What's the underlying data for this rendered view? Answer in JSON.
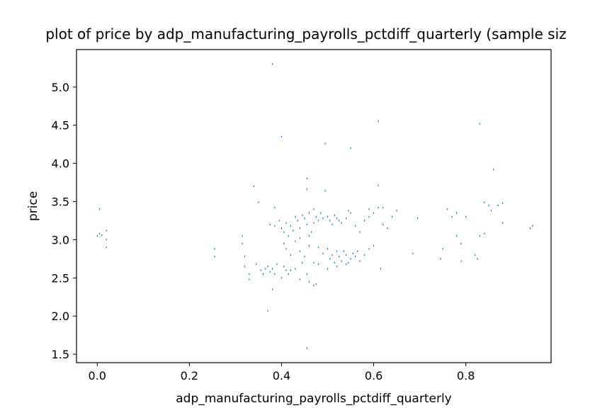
{
  "chart_data": {
    "type": "scatter",
    "title": "plot of price by adp_manufacturing_payrolls_pctdiff_quarterly (sample siz",
    "xlabel": "adp_manufacturing_payrolls_pctdiff_quarterly",
    "ylabel": "price",
    "xlim": [
      -0.045,
      0.985
    ],
    "ylim": [
      1.39,
      5.49
    ],
    "x_ticks": [
      0.0,
      0.2,
      0.4,
      0.6,
      0.8
    ],
    "x_tick_labels": [
      "0.0",
      "0.2",
      "0.4",
      "0.6",
      "0.8"
    ],
    "y_ticks": [
      1.5,
      2.0,
      2.5,
      3.0,
      3.5,
      4.0,
      4.5,
      5.0
    ],
    "y_tick_labels": [
      "1.5",
      "2.0",
      "2.5",
      "3.0",
      "3.5",
      "4.0",
      "4.5",
      "5.0"
    ],
    "grid": false,
    "marker_color": "#1f77b4",
    "points": [
      [
        0.38,
        5.3
      ],
      [
        0.61,
        4.55
      ],
      [
        0.83,
        4.52
      ],
      [
        0.4,
        4.35
      ],
      [
        0.495,
        4.26
      ],
      [
        0.55,
        4.2
      ],
      [
        0.86,
        3.92
      ],
      [
        0.455,
        3.8
      ],
      [
        0.61,
        3.71
      ],
      [
        0.34,
        3.7
      ],
      [
        0.455,
        3.66
      ],
      [
        0.495,
        3.64
      ],
      [
        0.35,
        3.49
      ],
      [
        0.84,
        3.49
      ],
      [
        0.87,
        3.45
      ],
      [
        0.005,
        3.4
      ],
      [
        0.385,
        3.42
      ],
      [
        0.47,
        3.4
      ],
      [
        0.545,
        3.38
      ],
      [
        0.59,
        3.4
      ],
      [
        0.62,
        3.42
      ],
      [
        0.65,
        3.38
      ],
      [
        0.76,
        3.4
      ],
      [
        0.78,
        3.35
      ],
      [
        0.85,
        3.45
      ],
      [
        0.88,
        3.48
      ],
      [
        0.855,
        3.38
      ],
      [
        0.005,
        3.08
      ],
      [
        0.01,
        3.06
      ],
      [
        0.0,
        3.05
      ],
      [
        0.02,
        3.12
      ],
      [
        0.02,
        3.0
      ],
      [
        0.02,
        2.9
      ],
      [
        0.255,
        2.88
      ],
      [
        0.255,
        2.78
      ],
      [
        0.315,
        3.05
      ],
      [
        0.315,
        2.95
      ],
      [
        0.32,
        2.78
      ],
      [
        0.32,
        2.65
      ],
      [
        0.33,
        2.55
      ],
      [
        0.33,
        2.48
      ],
      [
        0.345,
        2.68
      ],
      [
        0.355,
        2.6
      ],
      [
        0.36,
        2.55
      ],
      [
        0.365,
        2.62
      ],
      [
        0.37,
        2.65
      ],
      [
        0.375,
        2.58
      ],
      [
        0.38,
        2.62
      ],
      [
        0.385,
        2.55
      ],
      [
        0.39,
        2.68
      ],
      [
        0.4,
        2.5
      ],
      [
        0.405,
        2.65
      ],
      [
        0.41,
        2.6
      ],
      [
        0.415,
        2.55
      ],
      [
        0.42,
        2.6
      ],
      [
        0.43,
        2.62
      ],
      [
        0.44,
        2.48
      ],
      [
        0.445,
        2.7
      ],
      [
        0.455,
        2.55
      ],
      [
        0.46,
        2.45
      ],
      [
        0.47,
        2.4
      ],
      [
        0.475,
        2.42
      ],
      [
        0.38,
        2.35
      ],
      [
        0.37,
        2.07
      ],
      [
        0.455,
        1.58
      ],
      [
        0.375,
        3.2
      ],
      [
        0.385,
        3.18
      ],
      [
        0.395,
        3.25
      ],
      [
        0.4,
        3.15
      ],
      [
        0.405,
        3.1
      ],
      [
        0.41,
        3.22
      ],
      [
        0.415,
        3.05
      ],
      [
        0.42,
        3.18
      ],
      [
        0.425,
        3.12
      ],
      [
        0.43,
        3.3
      ],
      [
        0.435,
        3.25
      ],
      [
        0.44,
        3.15
      ],
      [
        0.445,
        3.32
      ],
      [
        0.45,
        3.28
      ],
      [
        0.455,
        3.2
      ],
      [
        0.46,
        3.35
      ],
      [
        0.465,
        3.1
      ],
      [
        0.47,
        3.22
      ],
      [
        0.475,
        3.3
      ],
      [
        0.48,
        3.25
      ],
      [
        0.485,
        3.35
      ],
      [
        0.49,
        3.28
      ],
      [
        0.5,
        3.3
      ],
      [
        0.505,
        3.25
      ],
      [
        0.51,
        3.2
      ],
      [
        0.515,
        3.32
      ],
      [
        0.52,
        3.28
      ],
      [
        0.525,
        3.25
      ],
      [
        0.53,
        3.22
      ],
      [
        0.54,
        3.28
      ],
      [
        0.55,
        3.35
      ],
      [
        0.56,
        3.18
      ],
      [
        0.57,
        3.1
      ],
      [
        0.58,
        3.25
      ],
      [
        0.59,
        3.3
      ],
      [
        0.6,
        3.35
      ],
      [
        0.61,
        3.42
      ],
      [
        0.62,
        3.2
      ],
      [
        0.63,
        3.15
      ],
      [
        0.64,
        3.3
      ],
      [
        0.405,
        2.95
      ],
      [
        0.41,
        2.88
      ],
      [
        0.42,
        2.8
      ],
      [
        0.43,
        2.98
      ],
      [
        0.44,
        2.85
      ],
      [
        0.45,
        2.78
      ],
      [
        0.46,
        2.92
      ],
      [
        0.47,
        2.7
      ],
      [
        0.48,
        2.68
      ],
      [
        0.49,
        2.82
      ],
      [
        0.5,
        2.88
      ],
      [
        0.505,
        2.75
      ],
      [
        0.51,
        2.8
      ],
      [
        0.515,
        2.7
      ],
      [
        0.52,
        2.85
      ],
      [
        0.525,
        2.78
      ],
      [
        0.53,
        2.72
      ],
      [
        0.535,
        2.85
      ],
      [
        0.54,
        2.8
      ],
      [
        0.545,
        2.7
      ],
      [
        0.55,
        2.75
      ],
      [
        0.555,
        2.82
      ],
      [
        0.56,
        2.78
      ],
      [
        0.565,
        2.85
      ],
      [
        0.57,
        2.72
      ],
      [
        0.58,
        2.8
      ],
      [
        0.59,
        2.88
      ],
      [
        0.6,
        2.92
      ],
      [
        0.615,
        2.62
      ],
      [
        0.5,
        2.62
      ],
      [
        0.52,
        2.65
      ],
      [
        0.54,
        2.68
      ],
      [
        0.48,
        2.9
      ],
      [
        0.46,
        3.05
      ],
      [
        0.44,
        3.02
      ],
      [
        0.685,
        2.82
      ],
      [
        0.695,
        3.28
      ],
      [
        0.745,
        2.75
      ],
      [
        0.75,
        2.88
      ],
      [
        0.77,
        3.3
      ],
      [
        0.78,
        3.05
      ],
      [
        0.79,
        2.72
      ],
      [
        0.79,
        2.95
      ],
      [
        0.8,
        3.3
      ],
      [
        0.82,
        2.8
      ],
      [
        0.825,
        2.75
      ],
      [
        0.83,
        3.05
      ],
      [
        0.84,
        3.08
      ],
      [
        0.88,
        3.22
      ],
      [
        0.94,
        3.15
      ],
      [
        0.945,
        3.18
      ]
    ]
  }
}
